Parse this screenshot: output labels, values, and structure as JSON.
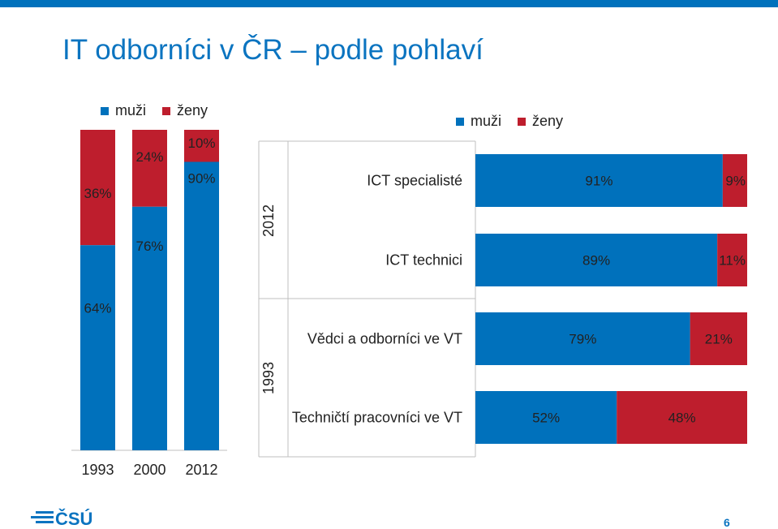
{
  "page": {
    "title": "IT odborníci v ČR – podle pohlaví",
    "page_number": "6",
    "logo_text": "ČSÚ"
  },
  "colors": {
    "male": "#0071bc",
    "female": "#be1e2d",
    "accent": "#0b74c0",
    "topbar": "#0071bc"
  },
  "legend": {
    "male": "muži",
    "female": "ženy"
  },
  "chart_data": [
    {
      "type": "bar",
      "stacked": true,
      "orientation": "vertical",
      "categories": [
        "1993",
        "2000",
        "2012"
      ],
      "series": [
        {
          "name": "muži",
          "values": [
            64,
            76,
            90
          ],
          "labels": [
            "64%",
            "76%",
            "90%"
          ]
        },
        {
          "name": "ženy",
          "values": [
            36,
            24,
            10
          ],
          "labels": [
            "36%",
            "24%",
            "10%"
          ]
        }
      ],
      "ylim": [
        0,
        100
      ],
      "legend": "top-left"
    },
    {
      "type": "bar",
      "stacked": true,
      "orientation": "horizontal",
      "groups": [
        {
          "label": "2012",
          "categories": [
            "ICT specialisté",
            "ICT technici"
          ]
        },
        {
          "label": "1993",
          "categories": [
            "Vědci a odborníci ve VT",
            "Techničtí pracovníci ve VT"
          ]
        }
      ],
      "categories": [
        "ICT specialisté",
        "ICT technici",
        "Vědci a odborníci ve VT",
        "Techničtí pracovníci ve VT"
      ],
      "series": [
        {
          "name": "muži",
          "values": [
            91,
            89,
            79,
            52
          ],
          "labels": [
            "91%",
            "89%",
            "79%",
            "52%"
          ]
        },
        {
          "name": "ženy",
          "values": [
            9,
            11,
            21,
            48
          ],
          "labels": [
            "9%",
            "11%",
            "21%",
            "48%"
          ]
        }
      ],
      "xlim": [
        0,
        100
      ],
      "legend": "top-center"
    }
  ]
}
